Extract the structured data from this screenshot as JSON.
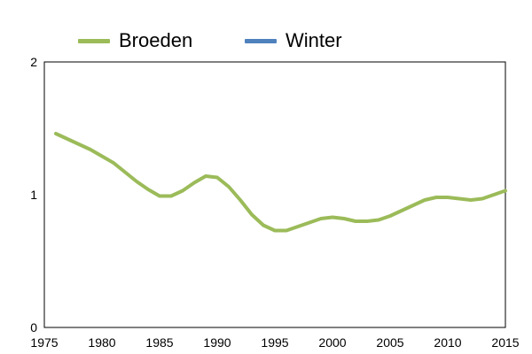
{
  "chart_data": {
    "type": "line",
    "title": "",
    "xlabel": "",
    "ylabel": "",
    "xlim": [
      1975,
      2015
    ],
    "ylim": [
      0,
      2
    ],
    "x_ticks": [
      "1975",
      "1980",
      "1985",
      "1990",
      "1995",
      "2000",
      "2005",
      "2010",
      "2015"
    ],
    "y_ticks": [
      "0",
      "1",
      "2"
    ],
    "grid": false,
    "legend_position": "top",
    "series": [
      {
        "name": "Broeden",
        "color": "#9bbb59",
        "x": [
          1976,
          1977,
          1978,
          1979,
          1980,
          1981,
          1982,
          1983,
          1984,
          1985,
          1986,
          1987,
          1988,
          1989,
          1990,
          1991,
          1992,
          1993,
          1994,
          1995,
          1996,
          1997,
          1998,
          1999,
          2000,
          2001,
          2002,
          2003,
          2004,
          2005,
          2006,
          2007,
          2008,
          2009,
          2010,
          2011,
          2012,
          2013,
          2014,
          2015
        ],
        "values": [
          1.46,
          1.42,
          1.38,
          1.34,
          1.29,
          1.24,
          1.17,
          1.1,
          1.04,
          0.99,
          0.99,
          1.03,
          1.09,
          1.14,
          1.13,
          1.06,
          0.96,
          0.85,
          0.77,
          0.73,
          0.73,
          0.76,
          0.79,
          0.82,
          0.83,
          0.82,
          0.8,
          0.8,
          0.81,
          0.84,
          0.88,
          0.92,
          0.96,
          0.98,
          0.98,
          0.97,
          0.96,
          0.97,
          1.0,
          1.03
        ]
      },
      {
        "name": "Winter",
        "color": "#4f81bd",
        "x": [],
        "values": []
      }
    ]
  }
}
